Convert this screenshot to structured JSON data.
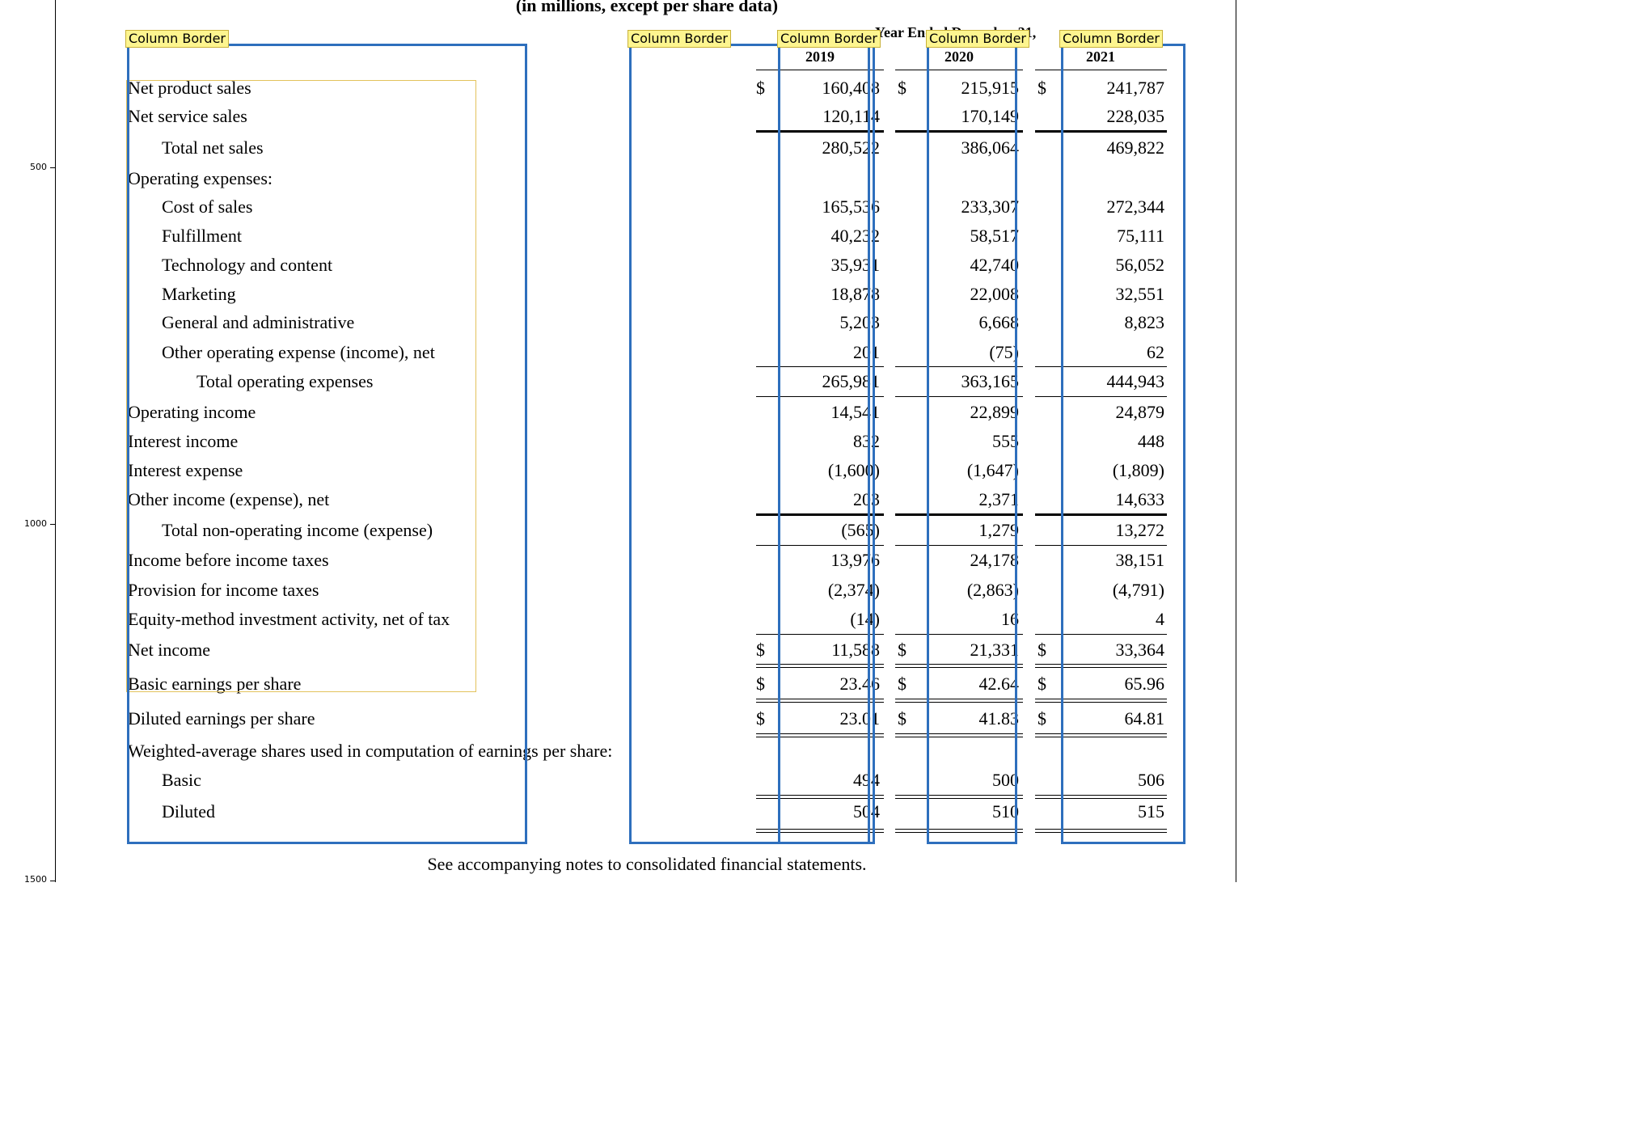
{
  "title": "(in millions, except per share data)",
  "header": "Year Ended December 31,",
  "years": [
    "2019",
    "2020",
    "2021"
  ],
  "column_tag": "Column Border",
  "currency_symbol": "$",
  "axis_ticks": [
    "500",
    "1000",
    "1500"
  ],
  "rows": [
    {
      "label": "Net product sales",
      "values": [
        "160,408",
        "215,915",
        "241,787"
      ]
    },
    {
      "label": "Net service sales",
      "values": [
        "120,114",
        "170,149",
        "228,035"
      ]
    },
    {
      "label": "Total net sales",
      "values": [
        "280,522",
        "386,064",
        "469,822"
      ]
    },
    {
      "label": "Operating expenses:",
      "values": [
        "",
        "",
        ""
      ]
    },
    {
      "label": "Cost of sales",
      "values": [
        "165,536",
        "233,307",
        "272,344"
      ]
    },
    {
      "label": "Fulfillment",
      "values": [
        "40,232",
        "58,517",
        "75,111"
      ]
    },
    {
      "label": "Technology and content",
      "values": [
        "35,931",
        "42,740",
        "56,052"
      ]
    },
    {
      "label": "Marketing",
      "values": [
        "18,878",
        "22,008",
        "32,551"
      ]
    },
    {
      "label": "General and administrative",
      "values": [
        "5,203",
        "6,668",
        "8,823"
      ]
    },
    {
      "label": "Other operating expense (income), net",
      "values": [
        "201",
        "(75)",
        "62"
      ]
    },
    {
      "label": "Total operating expenses",
      "values": [
        "265,981",
        "363,165",
        "444,943"
      ]
    },
    {
      "label": "Operating income",
      "values": [
        "14,541",
        "22,899",
        "24,879"
      ]
    },
    {
      "label": "Interest income",
      "values": [
        "832",
        "555",
        "448"
      ]
    },
    {
      "label": "Interest expense",
      "values": [
        "(1,600)",
        "(1,647)",
        "(1,809)"
      ]
    },
    {
      "label": "Other income (expense), net",
      "values": [
        "203",
        "2,371",
        "14,633"
      ]
    },
    {
      "label": "Total non-operating income (expense)",
      "values": [
        "(565)",
        "1,279",
        "13,272"
      ]
    },
    {
      "label": "Income before income taxes",
      "values": [
        "13,976",
        "24,178",
        "38,151"
      ]
    },
    {
      "label": "Provision for income taxes",
      "values": [
        "(2,374)",
        "(2,863)",
        "(4,791)"
      ]
    },
    {
      "label": "Equity-method investment activity, net of tax",
      "values": [
        "(14)",
        "16",
        "4"
      ]
    },
    {
      "label": "Net income",
      "values": [
        "11,588",
        "21,331",
        "33,364"
      ]
    },
    {
      "label": "Basic earnings per share",
      "values": [
        "23.46",
        "42.64",
        "65.96"
      ]
    },
    {
      "label": "Diluted earnings per share",
      "values": [
        "23.01",
        "41.83",
        "64.81"
      ]
    },
    {
      "label": "Weighted-average shares used in computation of earnings per share:",
      "values": [
        "",
        "",
        ""
      ]
    },
    {
      "label": "Basic",
      "values": [
        "494",
        "500",
        "506"
      ]
    },
    {
      "label": "Diluted",
      "values": [
        "504",
        "510",
        "515"
      ]
    }
  ],
  "footer": "See accompanying notes to consolidated financial statements.",
  "colors": {
    "column_border": "#2e6fbd",
    "column_tag_fill": "#fdf58f",
    "word_box": "#e3c25c"
  }
}
